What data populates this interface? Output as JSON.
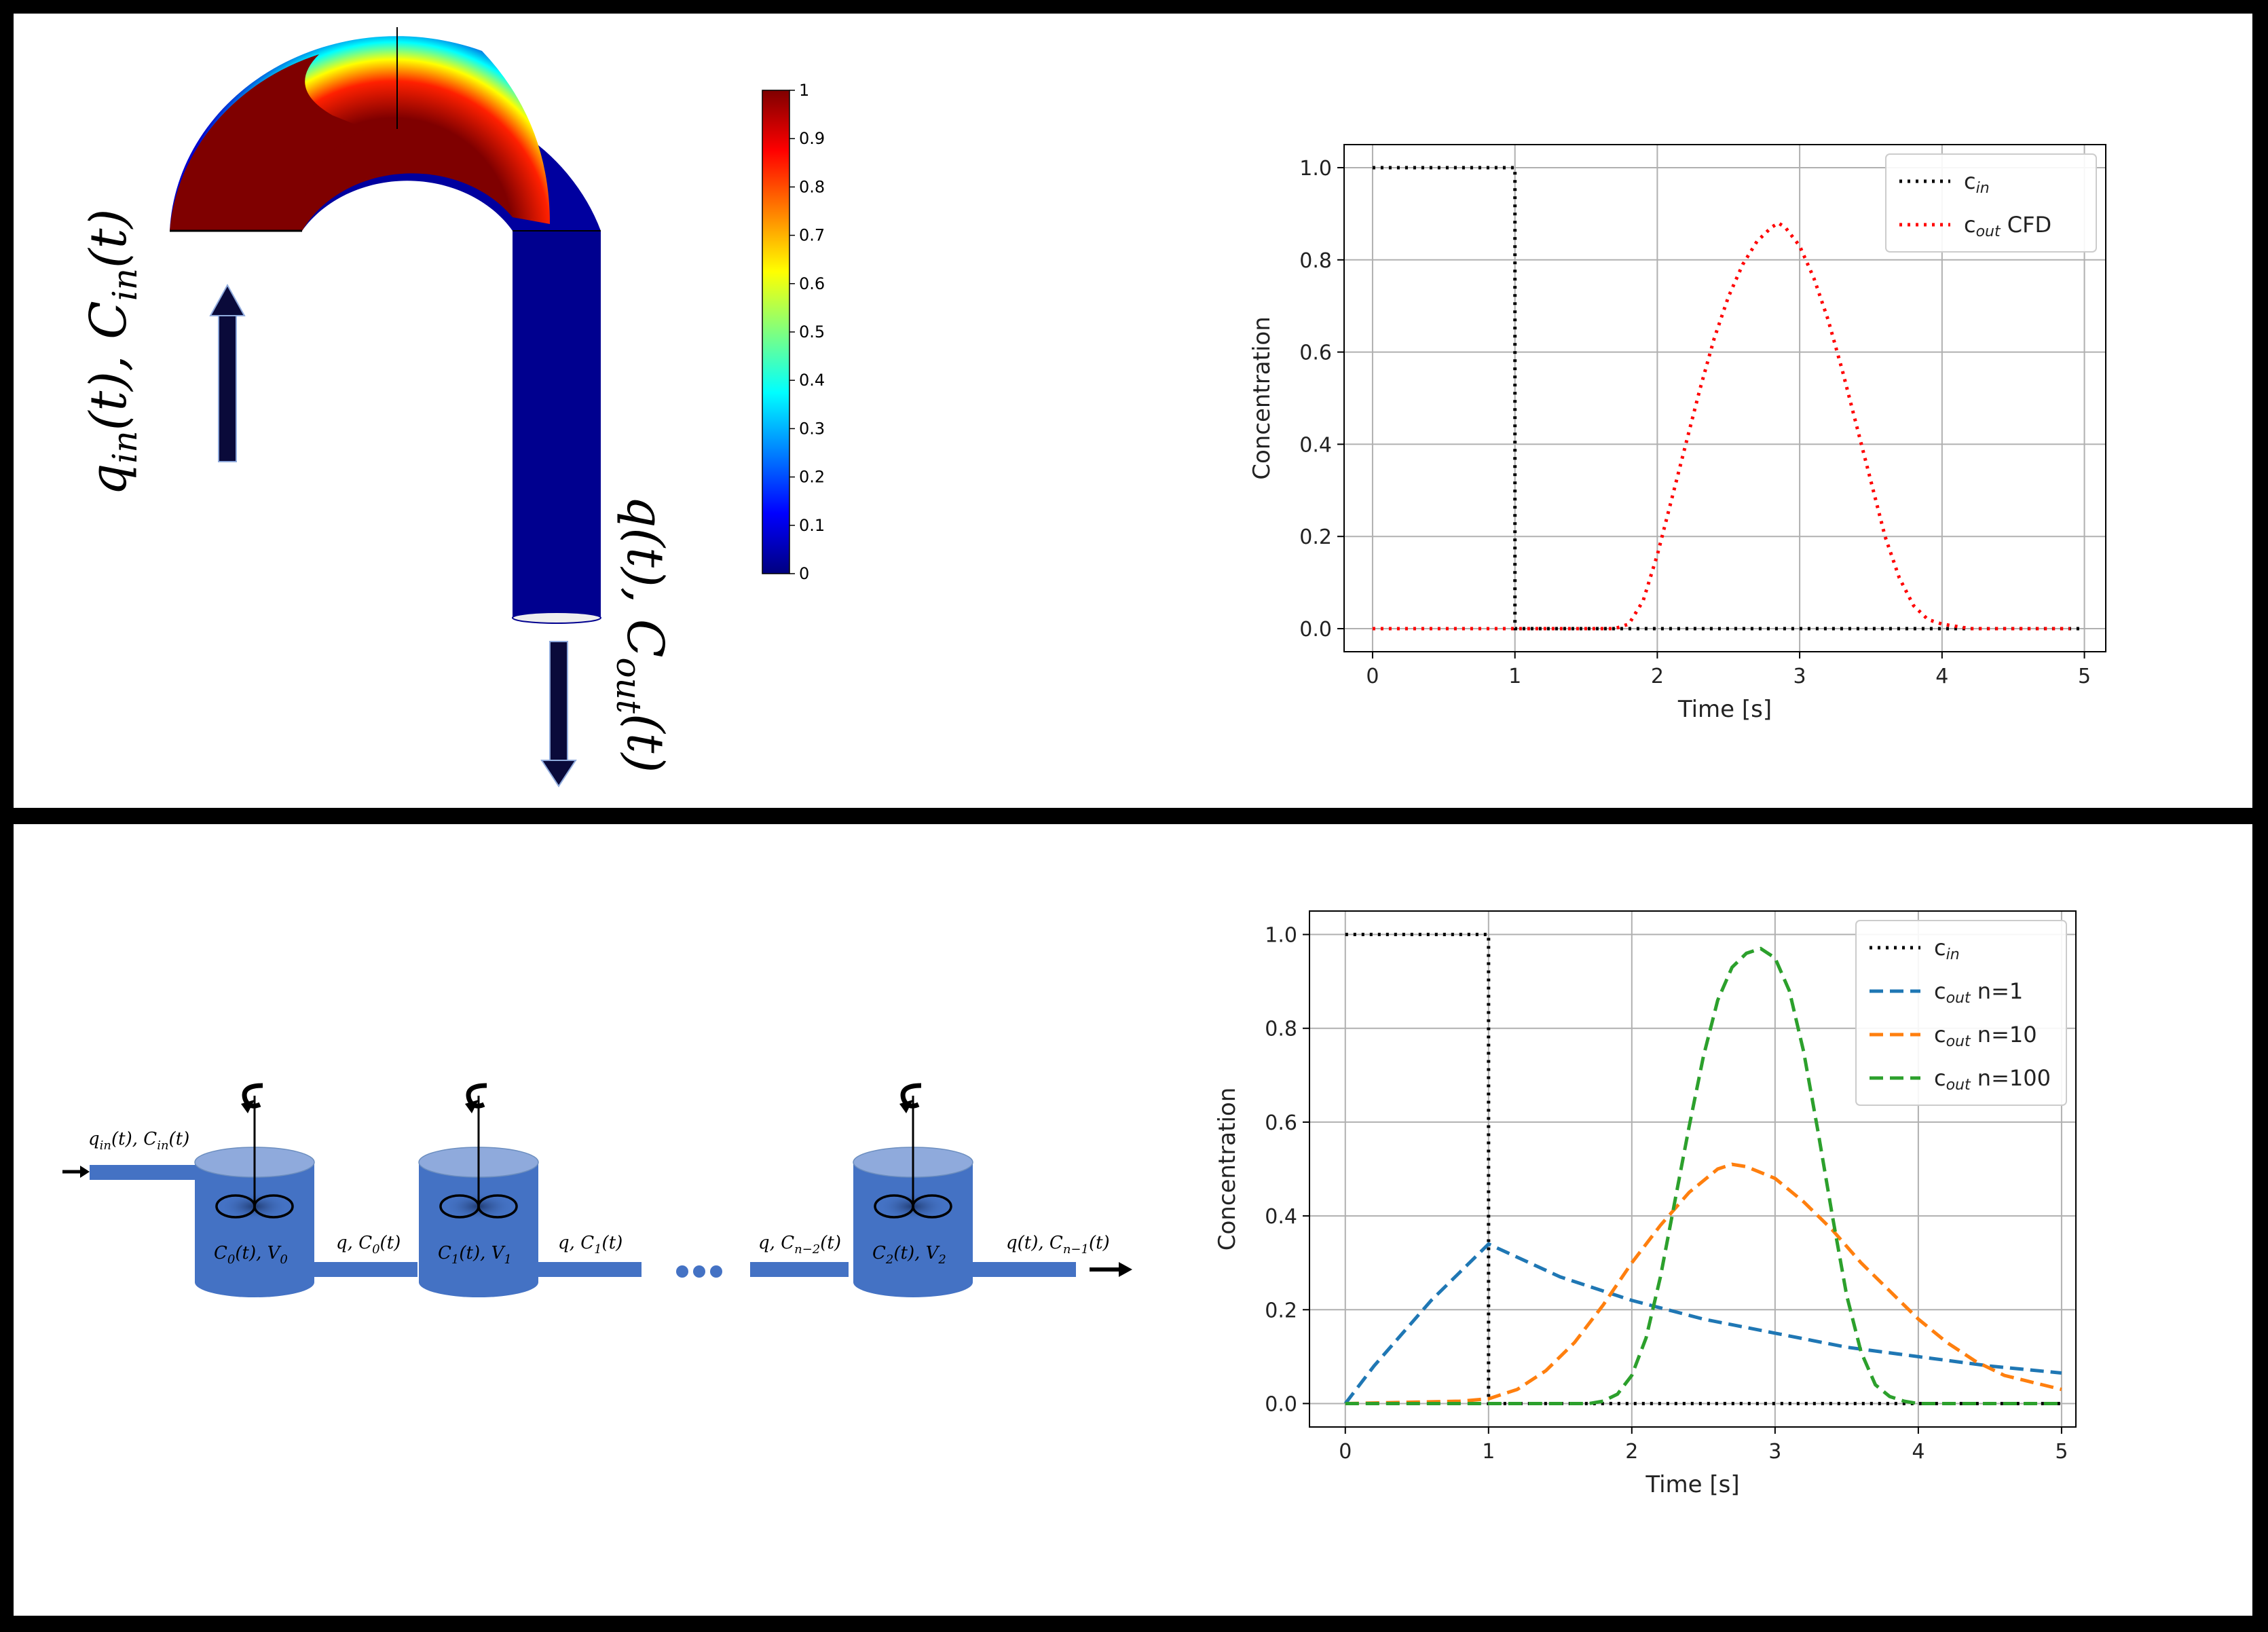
{
  "colors": {
    "frame": "#000000",
    "tank": "#4472c4",
    "tank_top": "#8faadc",
    "cin": "#000000",
    "cout_cfd": "#ff0000",
    "n1": "#1f77b4",
    "n10": "#ff7f0e",
    "n100": "#2ca02c"
  },
  "top": {
    "pipe": {
      "inlet_label": "q_in(t), C_in(t)",
      "inlet_label_parts": {
        "q": "q",
        "in1": "in",
        "t1": "(t), ",
        "c": "C",
        "in2": "in",
        "t2": "(t)"
      },
      "outlet_label_parts": {
        "q": "q",
        "t1": "(t), ",
        "c": "C",
        "out": "out",
        "t2": "(t)"
      },
      "colorbar_ticks": [
        "1",
        "0.9",
        "0.8",
        "0.7",
        "0.6",
        "0.5",
        "0.4",
        "0.3",
        "0.2",
        "0.1",
        "0"
      ],
      "colormap": "jet"
    },
    "chart_data": {
      "type": "line",
      "title": "",
      "xlabel": "Time [s]",
      "ylabel": "Concentration",
      "xlim": [
        -0.2,
        5.15
      ],
      "ylim": [
        -0.05,
        1.05
      ],
      "xticks": [
        0,
        1,
        2,
        3,
        4,
        5
      ],
      "yticks": [
        0.0,
        0.2,
        0.4,
        0.6,
        0.8,
        1.0
      ],
      "ytick_labels": [
        "0.0",
        "0.2",
        "0.4",
        "0.6",
        "0.8",
        "1.0"
      ],
      "grid": true,
      "legend_position": "top-right",
      "series": [
        {
          "name": "c_in",
          "label_main": "c",
          "label_sub": "in",
          "label_suffix": "",
          "style": "dotted",
          "color": "#000000",
          "x": [
            0,
            1,
            1,
            5
          ],
          "y": [
            1.0,
            1.0,
            0.0,
            0.0
          ]
        },
        {
          "name": "c_out CFD",
          "label_main": "c",
          "label_sub": "out",
          "label_suffix": " CFD",
          "style": "dotted",
          "color": "#ff0000",
          "x": [
            0,
            1.0,
            1.7,
            1.8,
            1.9,
            2.0,
            2.1,
            2.2,
            2.3,
            2.4,
            2.5,
            2.6,
            2.7,
            2.8,
            2.85,
            2.9,
            3.0,
            3.1,
            3.2,
            3.3,
            3.4,
            3.5,
            3.6,
            3.7,
            3.8,
            3.9,
            4.0,
            4.2,
            4.5,
            4.9
          ],
          "y": [
            0.0,
            0.0,
            0.0,
            0.01,
            0.06,
            0.16,
            0.28,
            0.4,
            0.52,
            0.63,
            0.72,
            0.79,
            0.84,
            0.87,
            0.88,
            0.87,
            0.83,
            0.76,
            0.67,
            0.56,
            0.44,
            0.32,
            0.2,
            0.11,
            0.05,
            0.02,
            0.01,
            0.0,
            0.0,
            0.0
          ]
        }
      ]
    }
  },
  "bottom": {
    "cstr": {
      "inlet_parts": {
        "q": "q",
        "in1": "in",
        "t1": "(t), ",
        "c": "C",
        "in2": "in",
        "t2": "(t)"
      },
      "tank0": {
        "c": "C",
        "sub": "0",
        "rest": "(t), ",
        "v": "V",
        "vsub": "0"
      },
      "tank1": {
        "c": "C",
        "sub": "1",
        "rest": "(t), ",
        "v": "V",
        "vsub": "1"
      },
      "tank2": {
        "c": "C",
        "sub": "2",
        "rest": "(t), ",
        "v": "V",
        "vsub": "2"
      },
      "pipe01": {
        "q": "q, ",
        "c": "C",
        "sub": "0",
        "rest": "(t)"
      },
      "pipe1x": {
        "q": "q, ",
        "c": "C",
        "sub": "1",
        "rest": "(t)"
      },
      "pipex2": {
        "q": "q, ",
        "c": "C",
        "sub": "n−2",
        "rest": "(t)"
      },
      "outlet": {
        "q": "q(t), ",
        "c": "C",
        "sub": "n−1",
        "rest": "(t)"
      }
    },
    "chart_data": {
      "type": "line",
      "title": "",
      "xlabel": "Time [s]",
      "ylabel": "Concentration",
      "xlim": [
        -0.25,
        5.1
      ],
      "ylim": [
        -0.05,
        1.05
      ],
      "xticks": [
        0,
        1,
        2,
        3,
        4,
        5
      ],
      "yticks": [
        0.0,
        0.2,
        0.4,
        0.6,
        0.8,
        1.0
      ],
      "ytick_labels": [
        "0.0",
        "0.2",
        "0.4",
        "0.6",
        "0.8",
        "1.0"
      ],
      "grid": true,
      "legend_position": "top-right",
      "series": [
        {
          "name": "c_in",
          "label_main": "c",
          "label_sub": "in",
          "label_suffix": "",
          "style": "dotted",
          "color": "#000000",
          "x": [
            0,
            1,
            1,
            5
          ],
          "y": [
            1.0,
            1.0,
            0.0,
            0.0
          ]
        },
        {
          "name": "c_out n=1",
          "label_main": "c",
          "label_sub": "out",
          "label_suffix": " n=1",
          "style": "dashed",
          "color": "#1f77b4",
          "x": [
            0,
            0.2,
            0.4,
            0.6,
            0.8,
            1.0,
            1.5,
            2.0,
            2.5,
            3.0,
            3.5,
            4.0,
            4.5,
            5.0
          ],
          "y": [
            0.0,
            0.08,
            0.15,
            0.22,
            0.28,
            0.34,
            0.27,
            0.22,
            0.18,
            0.15,
            0.12,
            0.1,
            0.08,
            0.065
          ]
        },
        {
          "name": "c_out n=10",
          "label_main": "c",
          "label_sub": "out",
          "label_suffix": " n=10",
          "style": "dashed",
          "color": "#ff7f0e",
          "x": [
            0,
            0.8,
            1.0,
            1.2,
            1.4,
            1.6,
            1.8,
            2.0,
            2.2,
            2.4,
            2.6,
            2.7,
            2.8,
            3.0,
            3.2,
            3.4,
            3.6,
            3.8,
            4.0,
            4.2,
            4.4,
            4.6,
            4.8,
            5.0
          ],
          "y": [
            0.0,
            0.005,
            0.01,
            0.03,
            0.07,
            0.13,
            0.21,
            0.3,
            0.38,
            0.45,
            0.5,
            0.51,
            0.505,
            0.48,
            0.43,
            0.37,
            0.3,
            0.24,
            0.18,
            0.13,
            0.09,
            0.06,
            0.045,
            0.03
          ]
        },
        {
          "name": "c_out n=100",
          "label_main": "c",
          "label_sub": "out",
          "label_suffix": " n=100",
          "style": "dashed",
          "color": "#2ca02c",
          "x": [
            0,
            1.0,
            1.7,
            1.8,
            1.9,
            2.0,
            2.1,
            2.2,
            2.3,
            2.4,
            2.5,
            2.6,
            2.7,
            2.8,
            2.9,
            3.0,
            3.1,
            3.2,
            3.3,
            3.4,
            3.5,
            3.6,
            3.7,
            3.8,
            3.9,
            4.0,
            4.5,
            5.0
          ],
          "y": [
            0.0,
            0.0,
            0.0,
            0.005,
            0.02,
            0.06,
            0.14,
            0.27,
            0.43,
            0.59,
            0.74,
            0.86,
            0.93,
            0.96,
            0.97,
            0.95,
            0.88,
            0.75,
            0.58,
            0.4,
            0.23,
            0.11,
            0.04,
            0.015,
            0.005,
            0.0,
            0.0,
            0.0
          ]
        }
      ]
    }
  }
}
